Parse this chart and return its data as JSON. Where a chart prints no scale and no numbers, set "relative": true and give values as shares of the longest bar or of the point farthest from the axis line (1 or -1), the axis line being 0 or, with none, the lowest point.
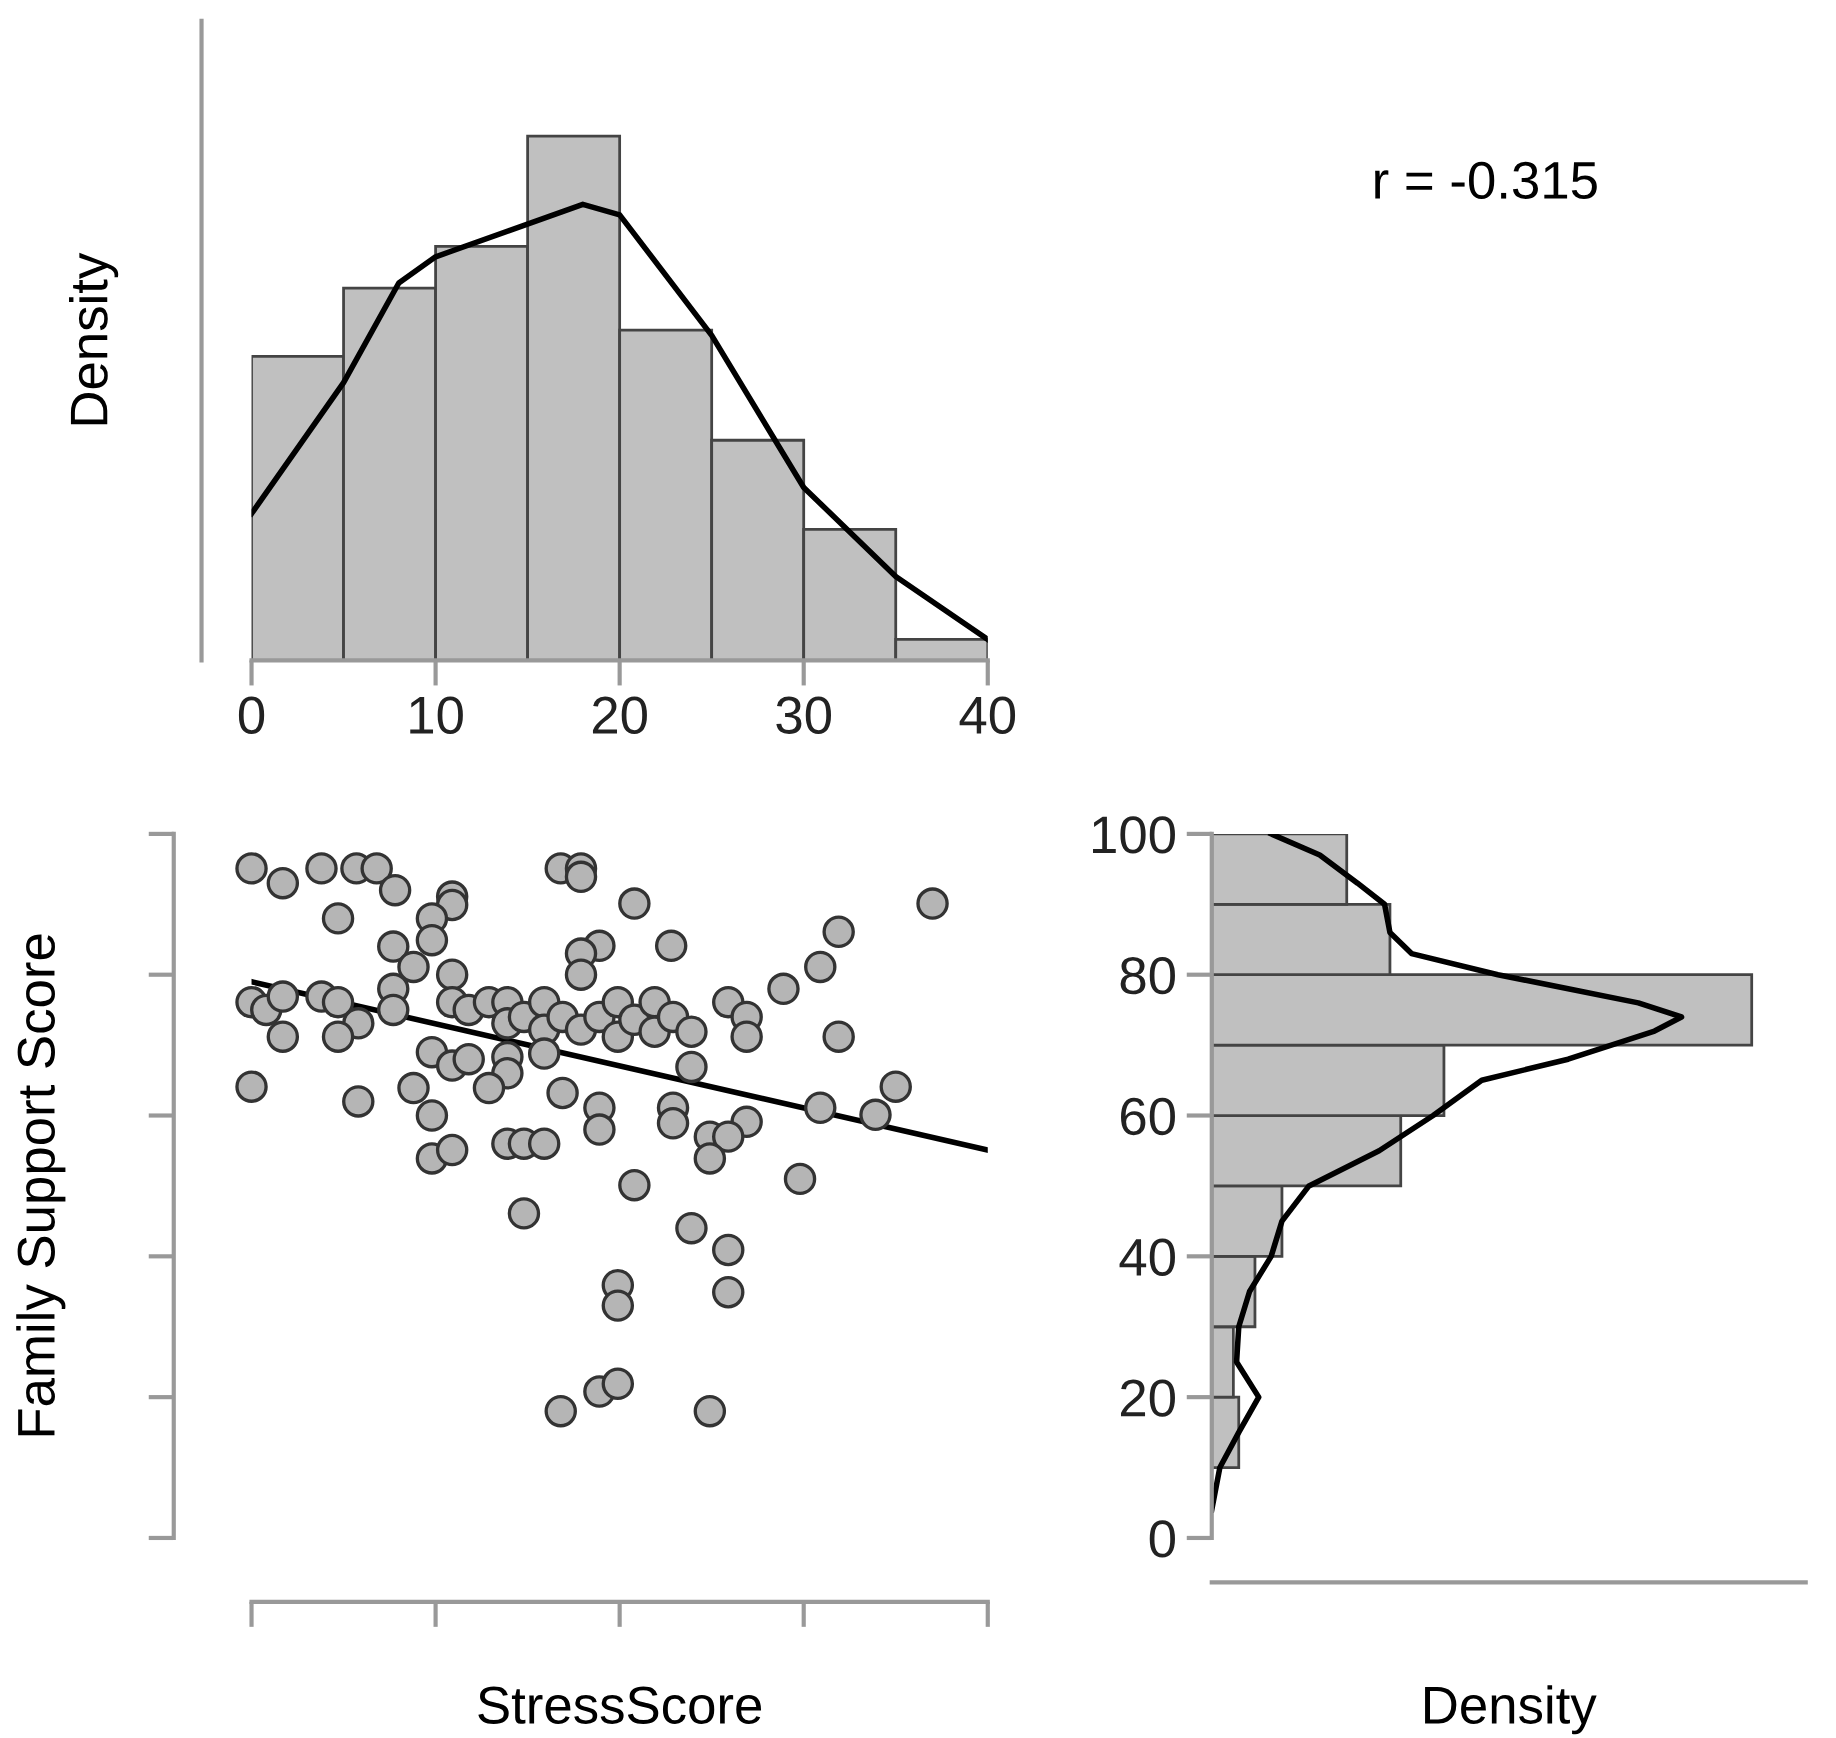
{
  "chart_data": [
    {
      "type": "histogram",
      "relative": true,
      "ylabel": "Density",
      "bins": [
        0,
        5,
        10,
        15,
        20,
        25,
        30,
        35,
        40
      ],
      "xlim": [
        0,
        40
      ],
      "xticks": [
        0,
        10,
        20,
        30,
        40
      ],
      "tick_labels": "x",
      "series": [
        {
          "type": "histogram",
          "color": "#c0c0c0",
          "values": [
            0.58,
            0.71,
            0.79,
            1.0,
            0.63,
            0.42,
            0.25,
            0.04
          ]
        },
        {
          "type": "line",
          "color": "#000000",
          "x": [
            0,
            5,
            8,
            10,
            14,
            18,
            20,
            25,
            30,
            35,
            40
          ],
          "values": [
            0.28,
            0.53,
            0.72,
            0.77,
            0.82,
            0.87,
            0.85,
            0.62,
            0.33,
            0.16,
            0.04
          ]
        }
      ]
    },
    {
      "type": "other",
      "annotations": [
        "r = -0.315"
      ]
    },
    {
      "type": "scatter",
      "xlabel": "StressScore",
      "ylabel": "Family Support Score",
      "xlim": [
        0,
        40
      ],
      "ylim": [
        0,
        100
      ],
      "tick_labels": false,
      "xticks": [
        {
          "value": 0,
          "label": null
        },
        {
          "value": 10,
          "label": null
        },
        {
          "value": 20,
          "label": null
        },
        {
          "value": 30,
          "label": null
        },
        {
          "value": 40,
          "label": null
        }
      ],
      "yticks": [
        {
          "value": 0,
          "label": null
        },
        {
          "value": 20,
          "label": null
        },
        {
          "value": 40,
          "label": null
        },
        {
          "value": 60,
          "label": null
        },
        {
          "value": 80,
          "label": null
        },
        {
          "value": 100,
          "label": null
        }
      ],
      "series": [
        {
          "type": "scatter",
          "color": "#b5b5b5",
          "marker": "circle",
          "x": [
            0.0,
            1.7,
            3.8,
            5.7,
            6.8,
            7.8,
            4.7,
            10.9,
            10.9,
            9.8,
            9.8,
            7.7,
            8.8,
            10.9,
            7.7,
            0.0,
            0.8,
            1.7,
            3.8,
            4.7,
            5.8,
            7.7,
            1.7,
            4.7,
            0.0,
            5.8,
            10.9,
            11.8,
            12.9,
            13.9,
            13.9,
            14.8,
            15.9,
            15.9,
            16.9,
            17.9,
            18.9,
            19.9,
            19.9,
            20.8,
            9.8,
            10.9,
            11.8,
            13.9,
            13.9,
            12.9,
            15.9,
            8.8,
            9.8,
            9.8,
            10.9,
            13.9,
            14.8,
            15.9,
            16.9,
            18.9,
            18.9,
            16.8,
            17.9,
            17.9,
            20.8,
            18.9,
            17.9,
            17.9,
            20.8,
            22.8,
            21.9,
            21.9,
            22.9,
            23.9,
            25.9,
            26.9,
            26.9,
            28.9,
            30.9,
            31.9,
            37.0,
            31.9,
            23.9,
            35.0,
            30.9,
            33.9,
            22.9,
            22.9,
            26.9,
            24.9,
            25.9,
            24.9,
            29.8,
            14.8,
            23.9,
            25.9,
            19.9,
            19.9,
            25.9,
            18.9,
            19.9,
            16.8,
            24.9
          ],
          "values": [
            95.1,
            93.0,
            95.1,
            95.1,
            95.1,
            92.0,
            88.0,
            91.1,
            89.9,
            88.0,
            84.9,
            84.0,
            81.1,
            80.0,
            78.0,
            76.1,
            75.0,
            76.9,
            76.9,
            76.1,
            73.1,
            75.0,
            71.2,
            71.2,
            64.1,
            62.0,
            76.1,
            75.0,
            76.1,
            76.1,
            73.1,
            74.0,
            76.1,
            72.2,
            74.0,
            72.2,
            74.0,
            76.1,
            71.2,
            73.6,
            69.0,
            67.1,
            68.0,
            68.3,
            66.0,
            63.9,
            68.8,
            63.9,
            60.0,
            53.9,
            55.1,
            56.0,
            56.0,
            56.0,
            63.2,
            61.1,
            58.0,
            95.1,
            95.1,
            93.9,
            90.1,
            84.1,
            83.0,
            80.0,
            50.1,
            84.1,
            76.1,
            71.9,
            74.0,
            71.9,
            76.1,
            74.0,
            71.2,
            78.0,
            81.1,
            86.1,
            90.1,
            71.2,
            66.9,
            64.1,
            61.1,
            60.1,
            61.1,
            58.9,
            59.1,
            57.0,
            57.0,
            53.9,
            51.0,
            46.1,
            44.0,
            40.9,
            35.9,
            33.0,
            34.9,
            20.8,
            21.9,
            18.0,
            18.0
          ]
        },
        {
          "type": "line",
          "color": "#000000",
          "x": [
            0,
            40
          ],
          "values": [
            79.0,
            55.1
          ]
        }
      ]
    },
    {
      "type": "histogram",
      "orientation": "horizontal",
      "relative": true,
      "xlabel": "Density",
      "bins": [
        0,
        10,
        20,
        30,
        40,
        50,
        60,
        70,
        80,
        90,
        100
      ],
      "ylim": [
        0,
        100
      ],
      "yticks": [
        0,
        20,
        40,
        60,
        80,
        100
      ],
      "tick_labels": "y",
      "series": [
        {
          "type": "histogram",
          "color": "#c0c0c0",
          "values": [
            0,
            0.05,
            0.04,
            0.08,
            0.13,
            0.35,
            0.43,
            1.0,
            0.33,
            0.25
          ]
        },
        {
          "type": "line",
          "color": "#000000",
          "x": [
            4,
            10,
            15,
            20,
            25,
            30,
            35,
            40,
            45,
            50,
            55,
            60,
            65,
            68,
            72,
            74,
            76,
            78,
            80,
            83,
            86,
            90,
            93,
            97,
            100
          ],
          "values": [
            0,
            0.015,
            0.05,
            0.087,
            0.046,
            0.05,
            0.07,
            0.11,
            0.13,
            0.18,
            0.31,
            0.41,
            0.5,
            0.66,
            0.82,
            0.87,
            0.79,
            0.66,
            0.53,
            0.37,
            0.33,
            0.32,
            0.27,
            0.2,
            0.11
          ]
        }
      ]
    }
  ]
}
